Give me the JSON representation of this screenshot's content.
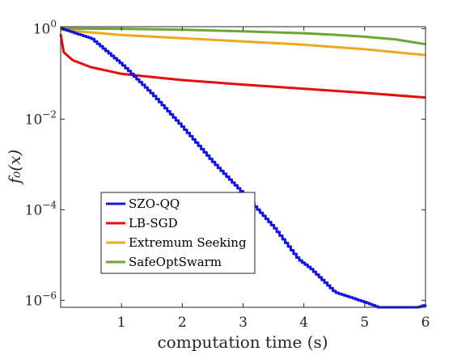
{
  "chart_data": {
    "type": "line",
    "xlabel": "computation time (s)",
    "ylabel": "f₀(x)",
    "xlim": [
      0,
      6
    ],
    "ylim": [
      7e-07,
      1.1
    ],
    "yscale": "log",
    "grid": false,
    "legend_position": "bottom-left",
    "xticks": [
      1,
      2,
      3,
      4,
      5,
      6
    ],
    "xtick_labels": [
      "1",
      "2",
      "3",
      "4",
      "5",
      "6"
    ],
    "yticks": [
      1,
      0.01,
      0.0001,
      1e-06
    ],
    "ytick_labels": [
      {
        "base": "10",
        "exp": "0"
      },
      {
        "base": "10",
        "exp": "−2"
      },
      {
        "base": "10",
        "exp": "−4"
      },
      {
        "base": "10",
        "exp": "−6"
      }
    ],
    "series": [
      {
        "name": "SZO-QQ",
        "color": "#1414e6",
        "style": "staircase",
        "x": [
          0.0,
          0.5,
          1.0,
          1.5,
          2.0,
          2.5,
          3.0,
          3.5,
          3.9,
          4.1,
          4.5,
          5.0,
          5.5,
          6.0
        ],
        "y": [
          1.0,
          0.6,
          0.16,
          0.035,
          0.0065,
          0.0011,
          0.00022,
          4e-05,
          8e-06,
          5e-06,
          1.5e-06,
          9e-07,
          5e-07,
          8e-07
        ]
      },
      {
        "name": "LB-SGD",
        "color": "#e60d0d",
        "style": "line",
        "x": [
          0.0,
          0.05,
          0.2,
          0.5,
          1.0,
          1.5,
          2.0,
          3.0,
          4.0,
          5.0,
          6.0
        ],
        "y": [
          0.75,
          0.3,
          0.2,
          0.14,
          0.1,
          0.085,
          0.073,
          0.058,
          0.047,
          0.038,
          0.03
        ]
      },
      {
        "name": "Extremum Seeking",
        "color": "#f0a81e",
        "style": "line",
        "x": [
          0.0,
          0.5,
          1.0,
          2.0,
          3.0,
          4.0,
          5.0,
          6.0
        ],
        "y": [
          0.95,
          0.82,
          0.72,
          0.61,
          0.52,
          0.44,
          0.35,
          0.26
        ]
      },
      {
        "name": "SafeOptSwarm",
        "color": "#6aa832",
        "style": "line",
        "x": [
          0.0,
          1.0,
          2.0,
          3.0,
          4.0,
          4.5,
          5.0,
          5.5,
          6.0
        ],
        "y": [
          1.0,
          0.99,
          0.94,
          0.87,
          0.79,
          0.73,
          0.66,
          0.58,
          0.45
        ]
      }
    ]
  }
}
